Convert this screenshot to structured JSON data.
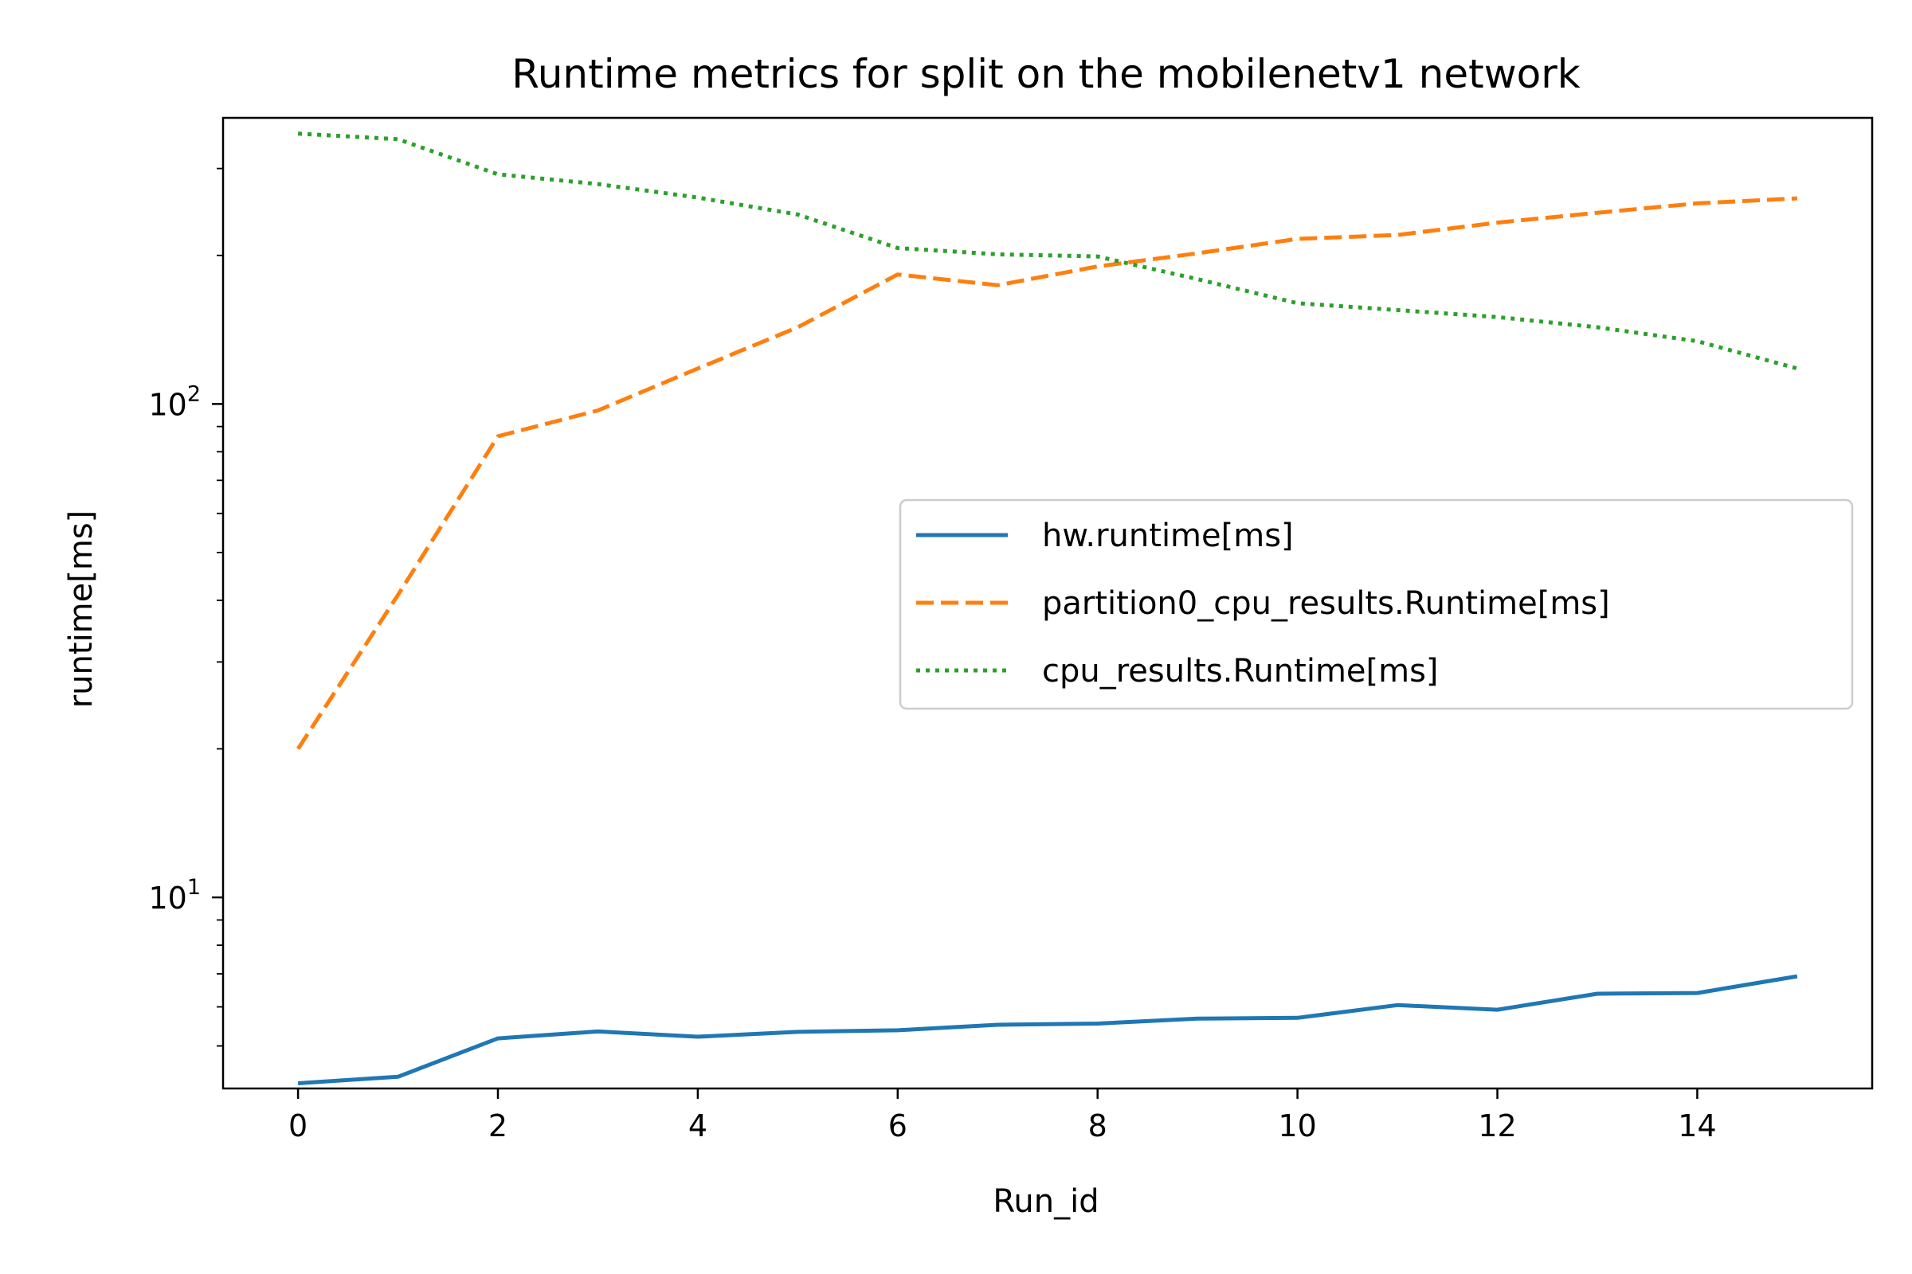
{
  "chart_data": {
    "type": "line",
    "title": "Runtime metrics for split on the mobilenetv1 network",
    "xlabel": "Run_id",
    "ylabel": "runtime[ms]",
    "xlim": [
      -0.75,
      15.75
    ],
    "ylim": [
      4.1,
      380
    ],
    "yscale": "log",
    "x_ticks": [
      0,
      2,
      4,
      6,
      8,
      10,
      12,
      14
    ],
    "y_ticks": [
      {
        "value": 10,
        "base": "10",
        "exp": "1"
      },
      {
        "value": 100,
        "base": "10",
        "exp": "2"
      }
    ],
    "grid": false,
    "legend_position": "center-right",
    "series": [
      {
        "name": "hw.runtime[ms]",
        "color": "#1f77b4",
        "dash": "solid",
        "x": [
          0,
          1,
          2,
          3,
          4,
          5,
          6,
          7,
          8,
          9,
          10,
          11,
          12,
          13,
          14,
          15
        ],
        "values": [
          4.2,
          4.33,
          5.18,
          5.35,
          5.22,
          5.34,
          5.38,
          5.52,
          5.55,
          5.68,
          5.7,
          6.05,
          5.92,
          6.38,
          6.4,
          6.92
        ]
      },
      {
        "name": "partition0_cpu_results.Runtime[ms]",
        "color": "#ff7f0e",
        "dash": "dashed",
        "x": [
          0,
          1,
          2,
          3,
          4,
          5,
          6,
          7,
          8,
          9,
          10,
          11,
          12,
          13,
          14,
          15
        ],
        "values": [
          20,
          41,
          86,
          97,
          118,
          143,
          183,
          174,
          190,
          202,
          216,
          220,
          233,
          244,
          255,
          261
        ]
      },
      {
        "name": "cpu_results.Runtime[ms]",
        "color": "#2ca02c",
        "dash": "dotted",
        "x": [
          0,
          1,
          2,
          3,
          4,
          5,
          6,
          7,
          8,
          9,
          10,
          11,
          12,
          13,
          14,
          15
        ],
        "values": [
          353,
          344,
          292,
          279,
          262,
          242,
          207,
          201,
          199,
          179,
          160,
          155,
          150,
          143,
          134,
          118
        ]
      }
    ]
  }
}
